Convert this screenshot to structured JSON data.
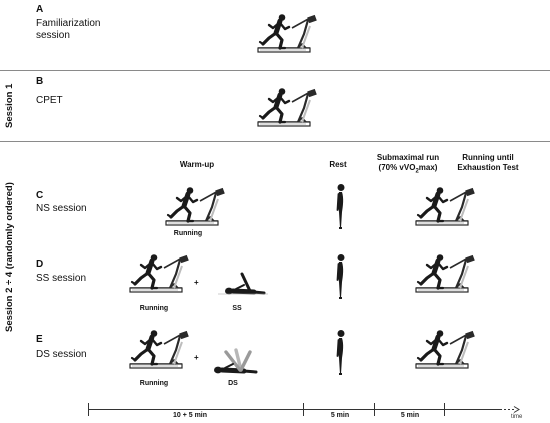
{
  "panels": [
    {
      "letter": "A",
      "title_line1": "Familiarization",
      "title_line2": "session"
    },
    {
      "letter": "B",
      "title": "CPET"
    },
    {
      "letter": "C",
      "title": "NS session"
    },
    {
      "letter": "D",
      "title": "SS session"
    },
    {
      "letter": "E",
      "title": "DS session"
    }
  ],
  "session_labels": {
    "session1": "Session  1",
    "session2": "Session 2 ÷ 4 (randomly ordered)"
  },
  "column_headers": {
    "warmup": "Warm-up",
    "rest": "Rest",
    "submax_line1": "Submaximal run",
    "submax_line2": "(70% vVO",
    "submax_sub": "2",
    "submax_end": "max)",
    "exhaustion_line1": "Running until",
    "exhaustion_line2": "Exhaustion Test"
  },
  "captions": {
    "running": "Running",
    "ss": "SS",
    "ds": "DS",
    "plus": "+"
  },
  "timeline": {
    "seg1": "10 + 5 min",
    "seg2": "5 min",
    "seg3": "5 min",
    "time": "time"
  },
  "colors": {
    "figure": "#1a1a1a",
    "treadmill": "#2a2a2a",
    "treadmill_light": "#bdbdbd",
    "divider": "#8a8a8a",
    "ghost": "#9a9a9a"
  },
  "icons": [
    "treadmill-runner-icon",
    "standing-person-icon",
    "supine-stretch-icon",
    "dynamic-stretch-icon"
  ]
}
